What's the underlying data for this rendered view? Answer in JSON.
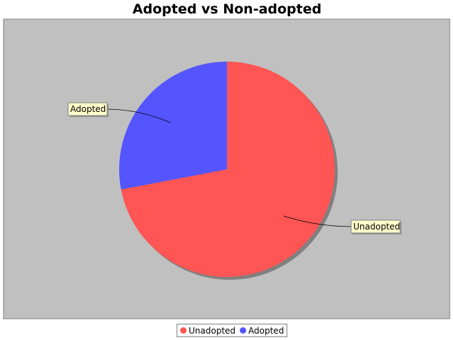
{
  "chart_data": {
    "type": "pie",
    "title": "Adopted vs Non-adopted",
    "slices": [
      {
        "label": "Unadopted",
        "value": 72,
        "color": "#ff5555"
      },
      {
        "label": "Adopted",
        "value": 28,
        "color": "#5555ff"
      }
    ],
    "legend_position": "bottom",
    "background_color": "#c0c0c0"
  }
}
